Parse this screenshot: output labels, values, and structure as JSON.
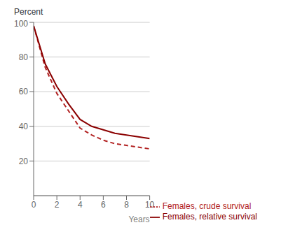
{
  "chart_data": {
    "type": "line",
    "x": [
      0,
      1,
      2,
      3,
      4,
      5,
      6,
      7,
      8,
      9,
      10
    ],
    "series": [
      {
        "name": "Females, crude survival",
        "color": "#b22222",
        "line_style": "dashed",
        "values": [
          98,
          74,
          59,
          49,
          39,
          35,
          32,
          30,
          29,
          28,
          27
        ]
      },
      {
        "name": "Females, relative survival",
        "color": "#8b0000",
        "line_style": "solid",
        "values": [
          98,
          76,
          63,
          53,
          44,
          40,
          38,
          36,
          35,
          34,
          33
        ]
      }
    ],
    "xlabel": "Years",
    "ylabel": "Percent",
    "xlim": [
      0,
      10
    ],
    "ylim": [
      0,
      100
    ],
    "xticks": [
      0,
      2,
      4,
      6,
      8,
      10
    ],
    "yticks": [
      20,
      40,
      60,
      80,
      100
    ],
    "grid": "y",
    "legend": "bottom right"
  }
}
